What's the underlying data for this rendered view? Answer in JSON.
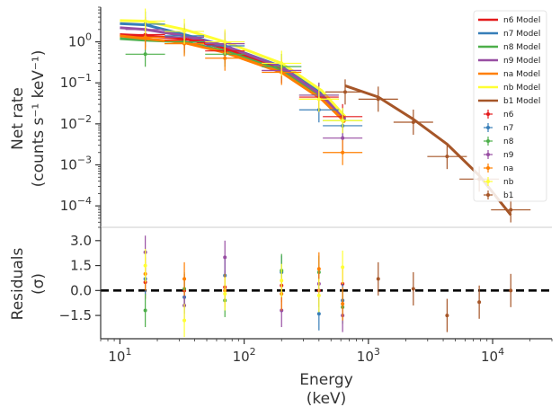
{
  "chart_data": [
    {
      "type": "line",
      "panel": "spectrum",
      "ylabel_line1": "Net rate",
      "ylabel_line2": "(counts s⁻¹ keV⁻¹)",
      "xscale": "log",
      "yscale": "log",
      "xlim": [
        7,
        30000
      ],
      "ylim": [
        3e-05,
        7
      ],
      "x_tick_values": [
        10,
        100,
        1000,
        10000
      ],
      "y_tick_values": [
        0.0001,
        0.001,
        0.01,
        0.1,
        1
      ],
      "y_tick_labels": [
        {
          "base": "10",
          "exp": "−4"
        },
        {
          "base": "10",
          "exp": "−3"
        },
        {
          "base": "10",
          "exp": "−2"
        },
        {
          "base": "10",
          "exp": "−1"
        },
        {
          "base": "10",
          "exp": "0"
        }
      ],
      "legend_position": "top-right",
      "series": [
        {
          "name": "n6 Model",
          "data_name": "n6",
          "color": "#e41a1c",
          "model": [
            [
              10,
              1.5
            ],
            [
              16,
              1.4
            ],
            [
              33,
              1.2
            ],
            [
              70,
              0.7
            ],
            [
              200,
              0.22
            ],
            [
              420,
              0.05
            ],
            [
              650,
              0.013
            ]
          ],
          "points": [
            [
              16,
              1.5
            ],
            [
              33,
              1.1
            ],
            [
              70,
              0.6
            ],
            [
              200,
              0.2
            ],
            [
              400,
              0.045
            ],
            [
              620,
              0.015
            ]
          ]
        },
        {
          "name": "n7 Model",
          "data_name": "n7",
          "color": "#377eb8",
          "model": [
            [
              10,
              2.8
            ],
            [
              16,
              2.6
            ],
            [
              33,
              1.5
            ],
            [
              70,
              0.8
            ],
            [
              200,
              0.25
            ],
            [
              420,
              0.055
            ],
            [
              650,
              0.014
            ]
          ],
          "points": [
            [
              16,
              2.7
            ],
            [
              33,
              1.4
            ],
            [
              70,
              0.8
            ],
            [
              200,
              0.25
            ],
            [
              400,
              0.022
            ],
            [
              620,
              0.009
            ]
          ]
        },
        {
          "name": "n8 Model",
          "data_name": "n8",
          "color": "#4daf4a",
          "model": [
            [
              10,
              1.2
            ],
            [
              16,
              1.1
            ],
            [
              33,
              1.0
            ],
            [
              70,
              0.6
            ],
            [
              200,
              0.2
            ],
            [
              420,
              0.045
            ],
            [
              650,
              0.012
            ]
          ],
          "points": [
            [
              16,
              0.5
            ],
            [
              33,
              1.0
            ],
            [
              70,
              0.5
            ],
            [
              200,
              0.25
            ],
            [
              400,
              0.05
            ],
            [
              620,
              0.012
            ]
          ]
        },
        {
          "name": "n9 Model",
          "data_name": "n9",
          "color": "#984ea3",
          "model": [
            [
              10,
              2.2
            ],
            [
              16,
              2.0
            ],
            [
              33,
              1.4
            ],
            [
              70,
              0.8
            ],
            [
              200,
              0.24
            ],
            [
              420,
              0.05
            ],
            [
              650,
              0.013
            ]
          ],
          "points": [
            [
              16,
              2.0
            ],
            [
              33,
              1.3
            ],
            [
              70,
              0.9
            ],
            [
              200,
              0.2
            ],
            [
              400,
              0.05
            ],
            [
              620,
              0.0045
            ]
          ]
        },
        {
          "name": "na Model",
          "data_name": "na",
          "color": "#ff7f00",
          "model": [
            [
              10,
              1.4
            ],
            [
              16,
              1.2
            ],
            [
              33,
              0.95
            ],
            [
              70,
              0.55
            ],
            [
              200,
              0.18
            ],
            [
              420,
              0.04
            ],
            [
              650,
              0.011
            ]
          ],
          "points": [
            [
              16,
              1.3
            ],
            [
              33,
              0.9
            ],
            [
              70,
              0.4
            ],
            [
              200,
              0.18
            ],
            [
              400,
              0.04
            ],
            [
              620,
              0.002
            ]
          ]
        },
        {
          "name": "nb Model",
          "data_name": "nb",
          "color": "#ffff33",
          "model": [
            [
              10,
              3.3
            ],
            [
              16,
              3.2
            ],
            [
              33,
              2.0
            ],
            [
              70,
              1.0
            ],
            [
              200,
              0.3
            ],
            [
              420,
              0.065
            ],
            [
              650,
              0.015
            ]
          ],
          "points": [
            [
              16,
              3.2
            ],
            [
              33,
              1.8
            ],
            [
              70,
              1.0
            ],
            [
              200,
              0.3
            ],
            [
              400,
              0.04
            ],
            [
              620,
              0.012
            ]
          ]
        },
        {
          "name": "b1 Model",
          "data_name": "b1",
          "color": "#a65628",
          "model": [
            [
              650,
              0.085
            ],
            [
              1200,
              0.045
            ],
            [
              2300,
              0.013
            ],
            [
              4300,
              0.0032
            ],
            [
              7800,
              0.00055
            ],
            [
              14000,
              6e-05
            ]
          ],
          "points": [
            [
              650,
              0.06
            ],
            [
              1200,
              0.04
            ],
            [
              2300,
              0.011
            ],
            [
              4300,
              0.0016
            ],
            [
              7800,
              0.00045
            ],
            [
              14000,
              8e-05
            ]
          ]
        }
      ]
    },
    {
      "type": "scatter",
      "panel": "residuals",
      "ylabel_line1": "Residuals",
      "ylabel_line2": "(σ)",
      "xlabel_line1": "Energy",
      "xlabel_line2": "(keV)",
      "xscale": "log",
      "xlim": [
        7,
        30000
      ],
      "ylim": [
        -2.9,
        3.8
      ],
      "x_tick_values": [
        10,
        100,
        1000,
        10000
      ],
      "x_tick_labels": [
        {
          "base": "10",
          "exp": "1"
        },
        {
          "base": "10",
          "exp": "2"
        },
        {
          "base": "10",
          "exp": "3"
        },
        {
          "base": "10",
          "exp": "4"
        }
      ],
      "y_ticks": [
        -1.5,
        0.0,
        1.5,
        3.0
      ],
      "y_tick_labels": [
        "−1.5",
        "0.0",
        "1.5",
        "3.0"
      ],
      "reference_line": 0,
      "series": [
        {
          "data_name": "n6",
          "color": "#e41a1c",
          "residuals": [
            [
              16,
              0.5
            ],
            [
              33,
              0.0
            ],
            [
              70,
              0.2
            ],
            [
              200,
              0.3
            ],
            [
              400,
              0.0
            ],
            [
              620,
              0.4
            ]
          ]
        },
        {
          "data_name": "n7",
          "color": "#377eb8",
          "residuals": [
            [
              16,
              0.7
            ],
            [
              33,
              -0.4
            ],
            [
              70,
              0.9
            ],
            [
              200,
              1.1
            ],
            [
              400,
              -1.4
            ],
            [
              620,
              -0.6
            ]
          ]
        },
        {
          "data_name": "n8",
          "color": "#4daf4a",
          "residuals": [
            [
              16,
              -1.2
            ],
            [
              33,
              0.1
            ],
            [
              70,
              -0.6
            ],
            [
              200,
              1.2
            ],
            [
              400,
              1.1
            ],
            [
              620,
              -1.0
            ]
          ]
        },
        {
          "data_name": "n9",
          "color": "#984ea3",
          "residuals": [
            [
              16,
              2.3
            ],
            [
              33,
              -0.9
            ],
            [
              70,
              2.0
            ],
            [
              200,
              -1.2
            ],
            [
              400,
              0.4
            ],
            [
              620,
              -1.5
            ]
          ]
        },
        {
          "data_name": "na",
          "color": "#ff7f00",
          "residuals": [
            [
              16,
              1.0
            ],
            [
              33,
              0.7
            ],
            [
              70,
              0.0
            ],
            [
              200,
              -0.2
            ],
            [
              400,
              1.3
            ],
            [
              620,
              -0.8
            ]
          ]
        },
        {
          "data_name": "nb",
          "color": "#ffff33",
          "residuals": [
            [
              16,
              1.5
            ],
            [
              33,
              -1.8
            ],
            [
              70,
              -0.2
            ],
            [
              200,
              0.6
            ],
            [
              400,
              -0.3
            ],
            [
              620,
              1.4
            ]
          ]
        },
        {
          "data_name": "b1",
          "color": "#a65628",
          "residuals": [
            [
              1200,
              0.7
            ],
            [
              2300,
              0.1
            ],
            [
              4300,
              -1.5
            ],
            [
              7800,
              -0.7
            ],
            [
              14000,
              0.0
            ]
          ]
        }
      ]
    }
  ]
}
